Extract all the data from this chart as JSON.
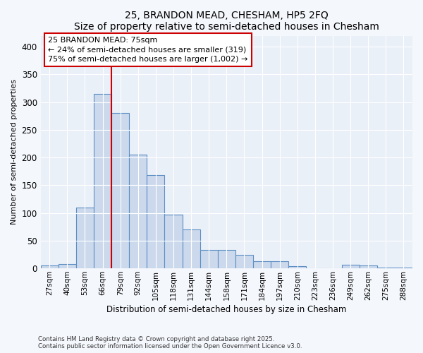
{
  "title1": "25, BRANDON MEAD, CHESHAM, HP5 2FQ",
  "title2": "Size of property relative to semi-detached houses in Chesham",
  "xlabel": "Distribution of semi-detached houses by size in Chesham",
  "ylabel": "Number of semi-detached properties",
  "categories": [
    "27sqm",
    "40sqm",
    "53sqm",
    "66sqm",
    "79sqm",
    "92sqm",
    "105sqm",
    "118sqm",
    "131sqm",
    "144sqm",
    "158sqm",
    "171sqm",
    "184sqm",
    "197sqm",
    "210sqm",
    "223sqm",
    "236sqm",
    "249sqm",
    "262sqm",
    "275sqm",
    "288sqm"
  ],
  "values": [
    5,
    8,
    110,
    315,
    280,
    205,
    168,
    97,
    70,
    33,
    33,
    25,
    13,
    13,
    4,
    0,
    0,
    6,
    5,
    2,
    1
  ],
  "bar_color": "#ccd9ec",
  "bar_edge_color": "#5b8ec4",
  "vline_x": 4.0,
  "vline_color": "#cc0000",
  "ylim": [
    0,
    420
  ],
  "yticks": [
    0,
    50,
    100,
    150,
    200,
    250,
    300,
    350,
    400
  ],
  "annotation_text": "25 BRANDON MEAD: 75sqm\n← 24% of semi-detached houses are smaller (319)\n75% of semi-detached houses are larger (1,002) →",
  "annotation_box_color": "#ffffff",
  "annotation_box_edge": "#cc0000",
  "footer1": "Contains HM Land Registry data © Crown copyright and database right 2025.",
  "footer2": "Contains public sector information licensed under the Open Government Licence v3.0.",
  "bg_color": "#f4f7fc",
  "plot_bg_color": "#eaf0f8"
}
